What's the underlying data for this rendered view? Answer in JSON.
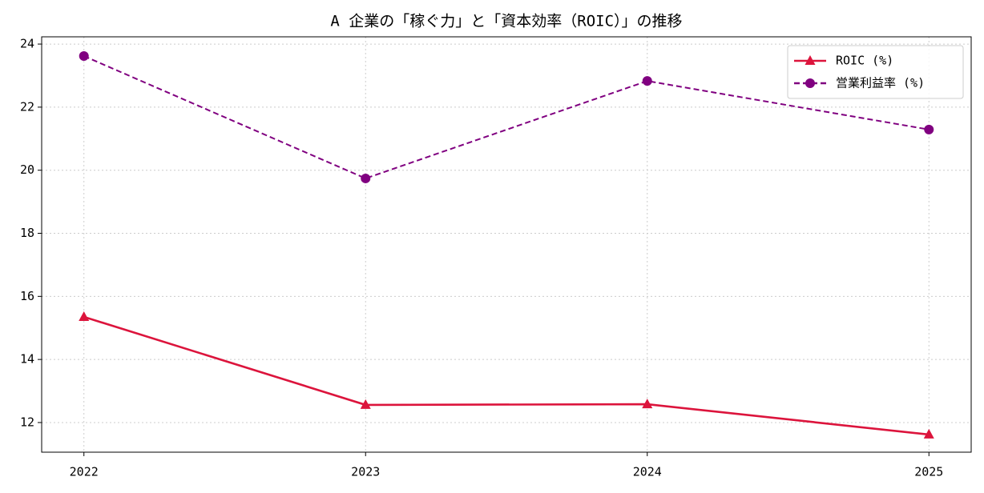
{
  "chart_data": {
    "type": "line",
    "title": "A 企業の「稼ぐ力」と「資本効率（ROIC）」の推移",
    "x": [
      2022,
      2023,
      2024,
      2025
    ],
    "series": [
      {
        "name": "ROIC (%)",
        "color": "#dc143c",
        "marker": "triangle",
        "linestyle": "solid",
        "values": [
          15.35,
          12.56,
          12.58,
          11.62
        ]
      },
      {
        "name": "営業利益率 (%)",
        "color": "#800080",
        "marker": "circle",
        "linestyle": "dashed",
        "values": [
          23.62,
          19.74,
          22.83,
          21.29
        ]
      }
    ],
    "xlim": [
      2021.85,
      2025.15
    ],
    "xticks": [
      2022,
      2023,
      2024,
      2025
    ],
    "ylim": [
      11.06,
      24.23
    ],
    "yticks": [
      12,
      14,
      16,
      18,
      20,
      22,
      24
    ],
    "grid": true,
    "legend": "upper right"
  }
}
